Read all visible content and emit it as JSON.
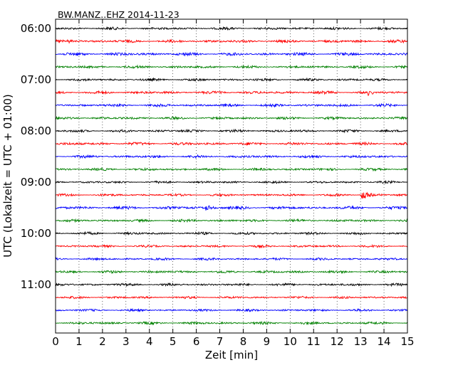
{
  "chart_data": {
    "type": "line",
    "title": "BW.MANZ..EHZ 2014-11-23",
    "xlabel": "Zeit  [min]",
    "ylabel": "UTC (Lokalzeit = UTC + 01:00)",
    "xlim": [
      0,
      15
    ],
    "x_ticks": [
      "0",
      "1",
      "2",
      "3",
      "4",
      "5",
      "6",
      "7",
      "8",
      "9",
      "10",
      "11",
      "12",
      "13",
      "14",
      "15"
    ],
    "y_tick_labels": [
      "06:00",
      "07:00",
      "08:00",
      "09:00",
      "10:00",
      "11:00"
    ],
    "grid": "vertical dotted",
    "row_interval_minutes": 15,
    "row_colors": [
      "#000000",
      "#ff0000",
      "#0000ff",
      "#008000"
    ],
    "rows": [
      {
        "start": "06:00",
        "color": "#000000",
        "noise": 2.0
      },
      {
        "start": "06:15",
        "color": "#ff0000",
        "noise": 2.2,
        "event_at_min": 0.5,
        "event_amp": 3
      },
      {
        "start": "06:30",
        "color": "#0000ff",
        "noise": 2.4
      },
      {
        "start": "06:45",
        "color": "#008000",
        "noise": 2.0
      },
      {
        "start": "07:00",
        "color": "#000000",
        "noise": 2.0
      },
      {
        "start": "07:15",
        "color": "#ff0000",
        "noise": 2.2,
        "event_at_min": 13.3,
        "event_amp": 3
      },
      {
        "start": "07:30",
        "color": "#0000ff",
        "noise": 2.2
      },
      {
        "start": "07:45",
        "color": "#008000",
        "noise": 2.0
      },
      {
        "start": "08:00",
        "color": "#000000",
        "noise": 2.0
      },
      {
        "start": "08:15",
        "color": "#ff0000",
        "noise": 2.2
      },
      {
        "start": "08:30",
        "color": "#0000ff",
        "noise": 2.2
      },
      {
        "start": "08:45",
        "color": "#008000",
        "noise": 2.0
      },
      {
        "start": "09:00",
        "color": "#000000",
        "noise": 1.8
      },
      {
        "start": "09:15",
        "color": "#ff0000",
        "noise": 1.8,
        "event_at_min": 13.05,
        "event_amp": 8
      },
      {
        "start": "09:30",
        "color": "#0000ff",
        "noise": 2.4,
        "event_at_min": 6.4,
        "event_amp": 4
      },
      {
        "start": "09:45",
        "color": "#008000",
        "noise": 2.0
      },
      {
        "start": "10:00",
        "color": "#000000",
        "noise": 2.0
      },
      {
        "start": "10:15",
        "color": "#ff0000",
        "noise": 1.8
      },
      {
        "start": "10:30",
        "color": "#0000ff",
        "noise": 1.8
      },
      {
        "start": "10:45",
        "color": "#008000",
        "noise": 2.0
      },
      {
        "start": "11:00",
        "color": "#000000",
        "noise": 2.0
      },
      {
        "start": "11:15",
        "color": "#ff0000",
        "noise": 1.8
      },
      {
        "start": "11:30",
        "color": "#0000ff",
        "noise": 1.8
      },
      {
        "start": "11:45",
        "color": "#008000",
        "noise": 2.0
      }
    ]
  }
}
